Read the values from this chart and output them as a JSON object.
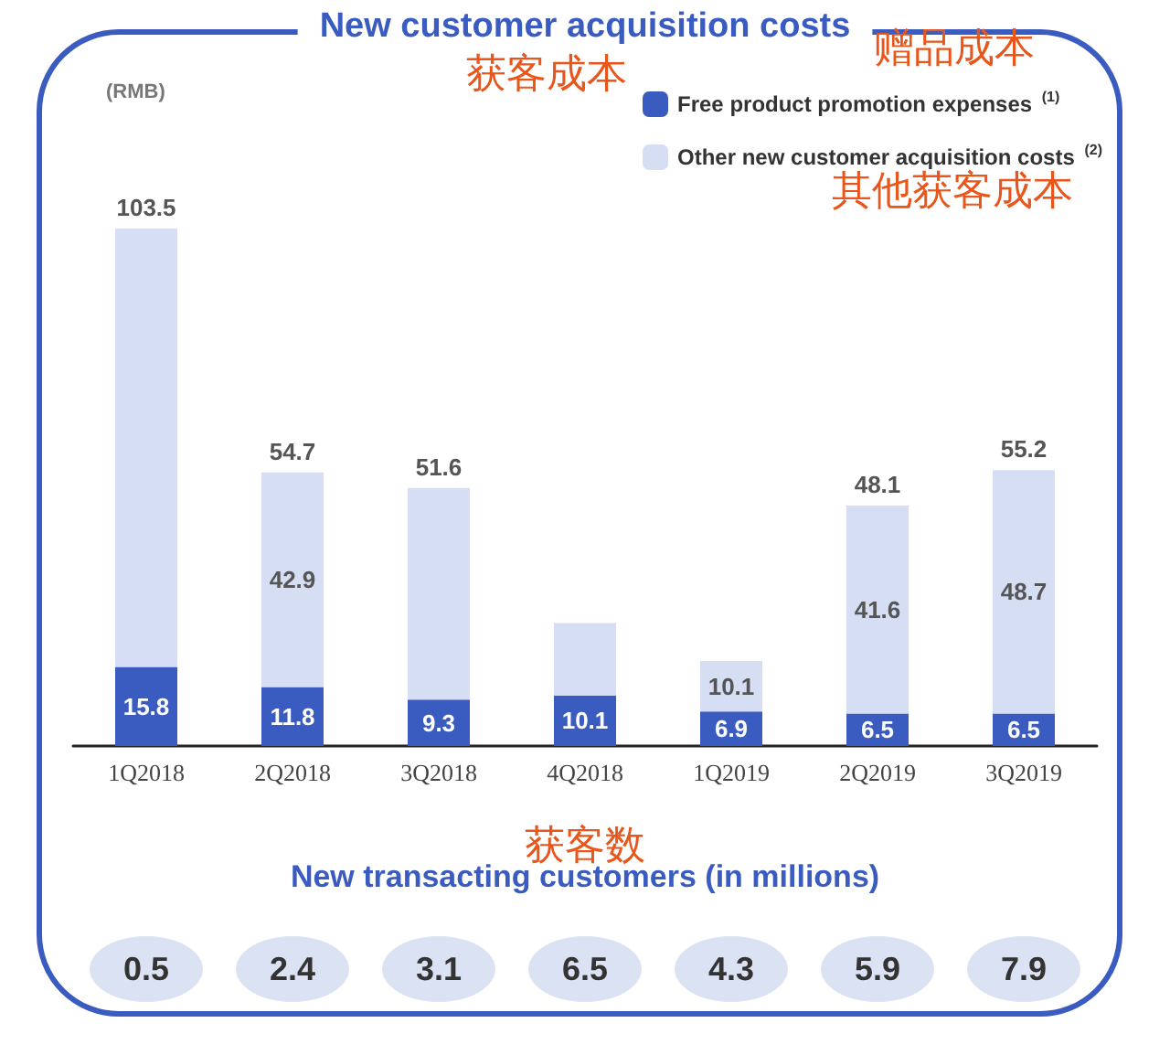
{
  "chart_data": [
    {
      "type": "bar",
      "title": "New customer acquisition costs",
      "ylabel": "(RMB)",
      "categories": [
        "1Q2018",
        "2Q2018",
        "3Q2018",
        "4Q2018",
        "1Q2019",
        "2Q2019",
        "3Q2019"
      ],
      "stacked": true,
      "legend": "top right",
      "series": [
        {
          "name": "Free product promotion expenses $^{(1)}$",
          "color": "#3a5bbf",
          "values": [
            15.8,
            11.8,
            9.3,
            10.1,
            6.9,
            6.5,
            6.5
          ],
          "value_labels": [
            "15.8",
            "11.8",
            "9.3",
            "10.1",
            "6.9",
            "6.5",
            "6.5"
          ]
        },
        {
          "name": "Other new customer acquisition costs $^{(2)}$",
          "color": "#d6def3",
          "values": [
            87.7,
            42.9,
            42.3,
            14.5,
            10.1,
            41.6,
            48.7
          ],
          "value_labels": [
            null,
            "42.9",
            null,
            null,
            "10.1",
            "41.6",
            "48.7"
          ]
        }
      ],
      "totals": [
        "103.5",
        "54.7",
        "51.6",
        null,
        null,
        "48.1",
        "55.2"
      ],
      "annotations": [
        "获客成本",
        "赠品成本",
        "其他获客成本"
      ]
    },
    {
      "type": "other",
      "title": "New transacting customers (in millions)",
      "categories": [
        null,
        null,
        null,
        null,
        null,
        null,
        null
      ],
      "values": [
        0.5,
        2.4,
        3.1,
        6.5,
        4.3,
        5.9,
        7.9
      ],
      "color": "#dbe2f3",
      "data_labels": true,
      "annotations": [
        "获客数"
      ]
    }
  ]
}
